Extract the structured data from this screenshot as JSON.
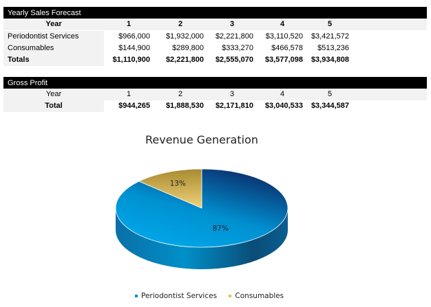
{
  "sales": {
    "title": "Yearly Sales Forecast",
    "year_label": "Year",
    "years": [
      "1",
      "2",
      "3",
      "4",
      "5"
    ],
    "rows": [
      {
        "label": "Periodontist Services",
        "values": [
          "$966,000",
          "$1,932,000",
          "$2,221,800",
          "$3,110,520",
          "$3,421,572"
        ]
      },
      {
        "label": "Consumables",
        "values": [
          "$144,900",
          "$289,800",
          "$333,270",
          "$466,578",
          "$513,236"
        ]
      },
      {
        "label": "Totals",
        "values": [
          "$1,110,900",
          "$2,221,800",
          "$2,555,070",
          "$3,577,098",
          "$3,934,808"
        ]
      }
    ]
  },
  "profit": {
    "title": "Gross Profit",
    "year_label": "Year",
    "years": [
      "1",
      "2",
      "3",
      "4",
      "5"
    ],
    "total_label": "Total",
    "values": [
      "$944,265",
      "$1,888,530",
      "$2,171,810",
      "$3,040,533",
      "$3,344,587"
    ]
  },
  "chart_data": {
    "type": "pie",
    "title": "Revenue Generation",
    "categories": [
      "Periodontist Services",
      "Consumables"
    ],
    "values": [
      87,
      13
    ],
    "labels": [
      "87%",
      "13%"
    ],
    "colors": [
      "#00a0e0",
      "#e6c05a"
    ],
    "legend": "bottom",
    "style": "3d"
  }
}
